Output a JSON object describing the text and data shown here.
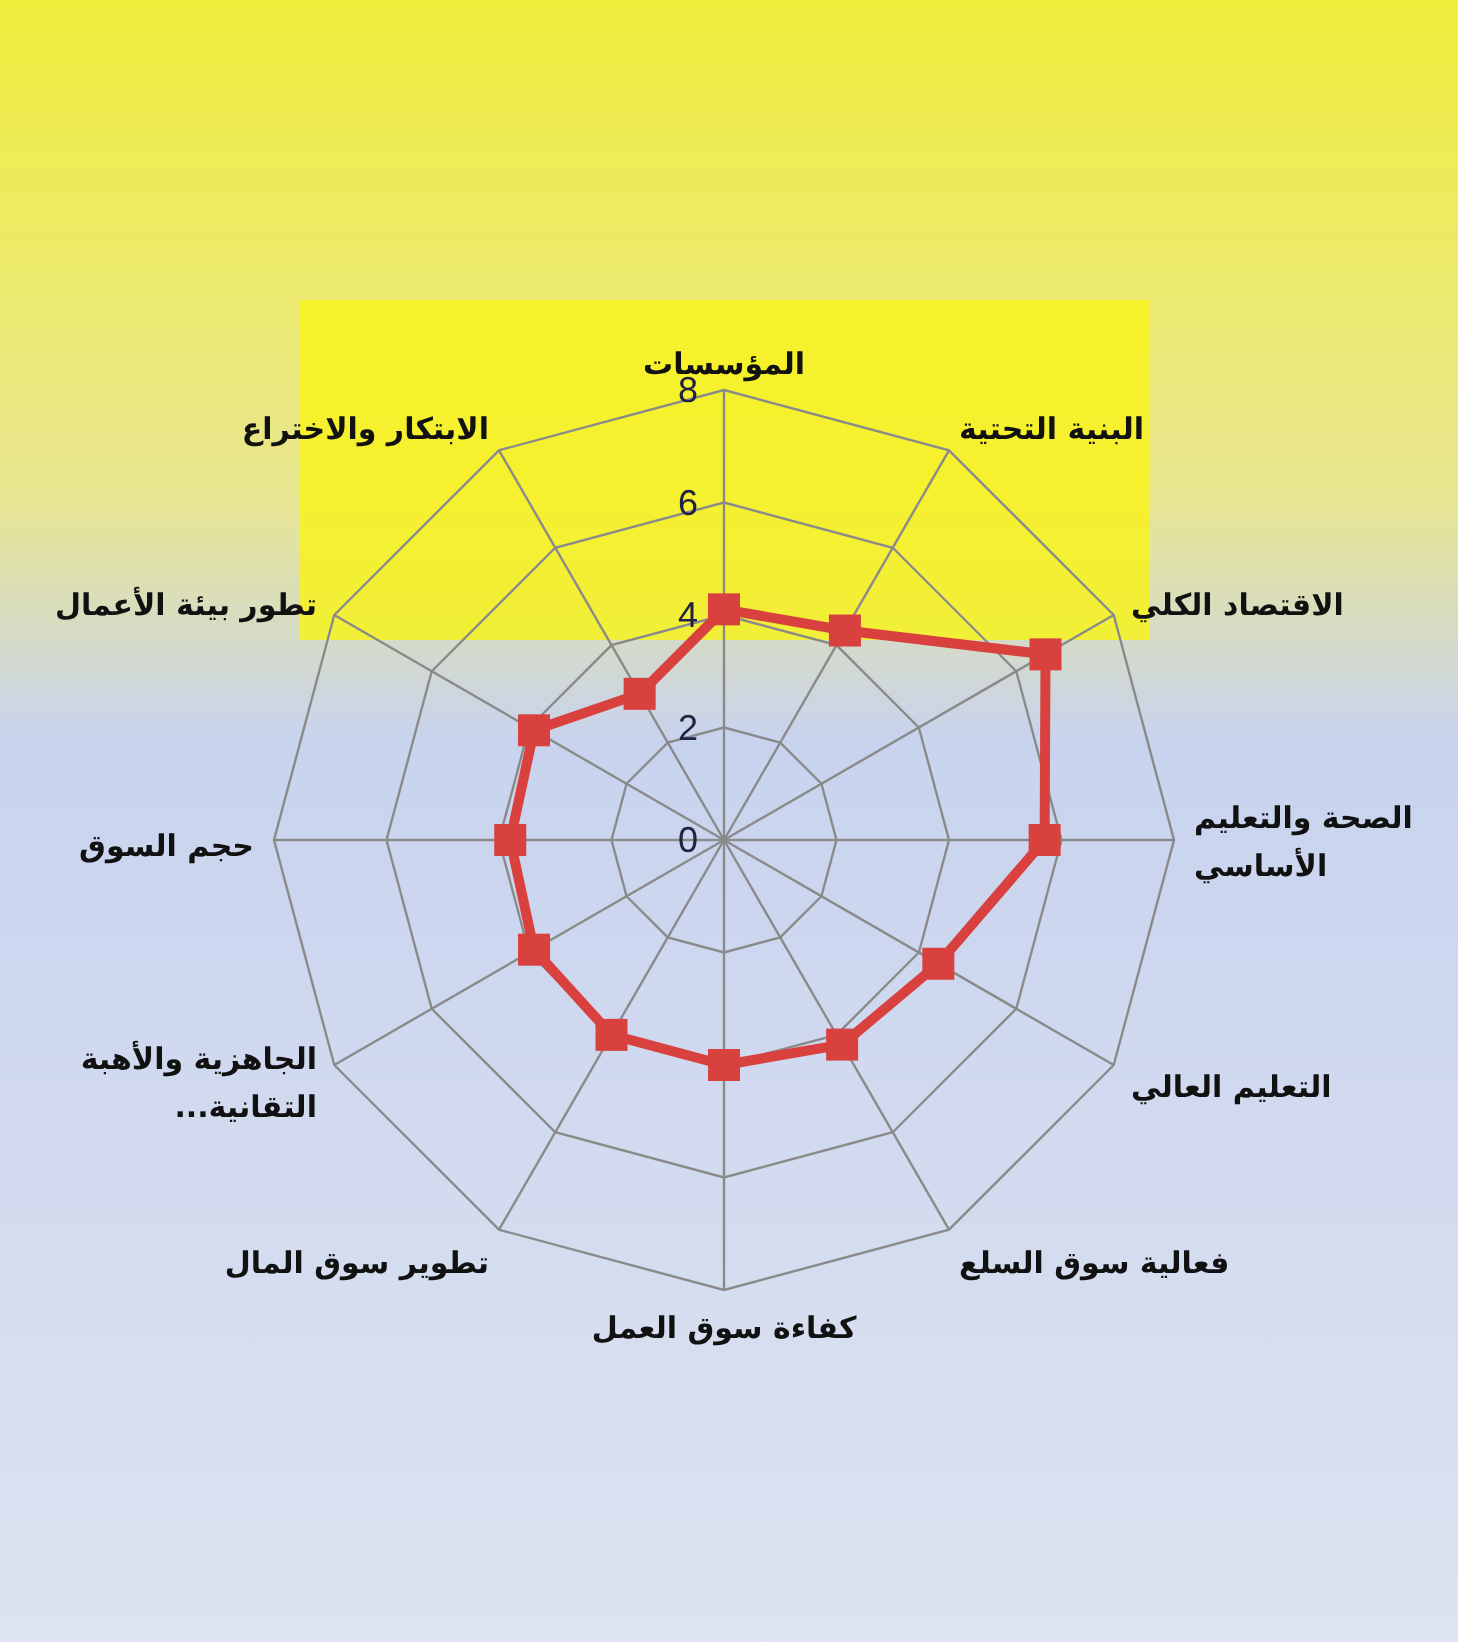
{
  "chart_data": {
    "type": "radar",
    "categories": [
      "المؤسسات",
      "البنية التحتية",
      "الاقتصاد الكلي",
      "الصحة والتعليم\nالأساسي",
      "التعليم العالي",
      "فعالية سوق السلع",
      "كفاءة سوق العمل",
      "تطوير سوق المال",
      "الجاهزية والأهبة\nالتقانية...",
      "حجم السوق",
      "تطور بيئة الأعمال",
      "الابتكار والاختراع"
    ],
    "series": [
      {
        "color": "#d9413f",
        "values": [
          4.1,
          4.3,
          6.6,
          5.7,
          4.4,
          4.2,
          4.0,
          4.0,
          3.9,
          3.8,
          3.9,
          3.0
        ]
      }
    ],
    "ylim": [
      0,
      8
    ],
    "yticks": [
      0,
      2,
      4,
      6,
      8
    ],
    "grid": true,
    "marker": "square",
    "line_style": "solid"
  }
}
